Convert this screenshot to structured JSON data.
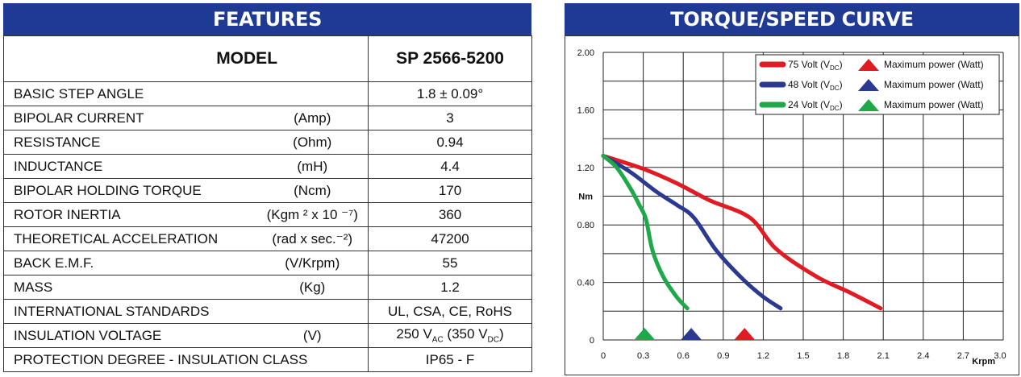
{
  "features": {
    "header": "FEATURES",
    "model_label": "MODEL",
    "model_value": "SP 2566-5200",
    "rows": [
      {
        "name": "BASIC STEP ANGLE",
        "unit": "",
        "value": "1.8 ± 0.09°"
      },
      {
        "name": "BIPOLAR CURRENT",
        "unit": "(Amp)",
        "value": "3"
      },
      {
        "name": "RESISTANCE",
        "unit": "(Ohm)",
        "value": "0.94"
      },
      {
        "name": "INDUCTANCE",
        "unit": "(mH)",
        "value": "4.4"
      },
      {
        "name": "BIPOLAR HOLDING TORQUE",
        "unit": "(Ncm)",
        "value": "170"
      },
      {
        "name": "ROTOR INERTIA",
        "unit": "(Kgm ² x 10 ⁻⁷)",
        "value": "360"
      },
      {
        "name": "THEORETICAL ACCELERATION",
        "unit": "(rad x sec.⁻²)",
        "value": "47200"
      },
      {
        "name": "BACK E.M.F.",
        "unit": "(V/Krpm)",
        "value": "55"
      },
      {
        "name": "MASS",
        "unit": "(Kg)",
        "value": "1.2"
      },
      {
        "name": "INTERNATIONAL STANDARDS",
        "unit": "",
        "value": "UL, CSA, CE, RoHS"
      },
      {
        "name": "INSULATION VOLTAGE",
        "unit": "(V)",
        "value": "250 VAC (350 VDC)"
      },
      {
        "name": "PROTECTION DEGREE - INSULATION CLASS",
        "unit": "",
        "value": "IP65 - F"
      }
    ]
  },
  "chart_data": {
    "type": "line",
    "title": "TORQUE/SPEED CURVE",
    "ylabel": "Nm",
    "xlabel": "Krpm",
    "xlim": [
      0,
      3.0
    ],
    "ylim": [
      0,
      2.0
    ],
    "x_ticks": [
      "0",
      "0.3",
      "0.6",
      "0.9",
      "1.2",
      "1.5",
      "1.8",
      "2.1",
      "2.4",
      "2.7",
      "3.0"
    ],
    "y_ticks": [
      "0",
      "0.40",
      "0.80",
      "1.20",
      "1.60",
      "2.00"
    ],
    "grid": true,
    "legend_position": "top-right",
    "legend_suffix": "Maximum power (Watt)",
    "series": [
      {
        "name": "75 Volt (VDC)",
        "color": "#e01b24",
        "points": [
          [
            0,
            1.28
          ],
          [
            0.3,
            1.19
          ],
          [
            0.55,
            1.09
          ],
          [
            0.8,
            0.97
          ],
          [
            1.1,
            0.85
          ],
          [
            1.3,
            0.63
          ],
          [
            1.6,
            0.44
          ],
          [
            1.85,
            0.33
          ],
          [
            2.08,
            0.22
          ]
        ],
        "max_power_x": 1.06
      },
      {
        "name": "48 Volt (VDC)",
        "color": "#2b3990",
        "points": [
          [
            0,
            1.28
          ],
          [
            0.2,
            1.17
          ],
          [
            0.4,
            1.03
          ],
          [
            0.55,
            0.94
          ],
          [
            0.68,
            0.85
          ],
          [
            0.85,
            0.62
          ],
          [
            1.05,
            0.42
          ],
          [
            1.2,
            0.3
          ],
          [
            1.33,
            0.22
          ]
        ],
        "max_power_x": 0.66
      },
      {
        "name": "24 Volt (VDC)",
        "color": "#1ea84a",
        "points": [
          [
            0,
            1.28
          ],
          [
            0.1,
            1.2
          ],
          [
            0.2,
            1.06
          ],
          [
            0.27,
            0.94
          ],
          [
            0.32,
            0.84
          ],
          [
            0.37,
            0.62
          ],
          [
            0.45,
            0.44
          ],
          [
            0.55,
            0.3
          ],
          [
            0.63,
            0.22
          ]
        ],
        "max_power_x": 0.31
      }
    ]
  }
}
